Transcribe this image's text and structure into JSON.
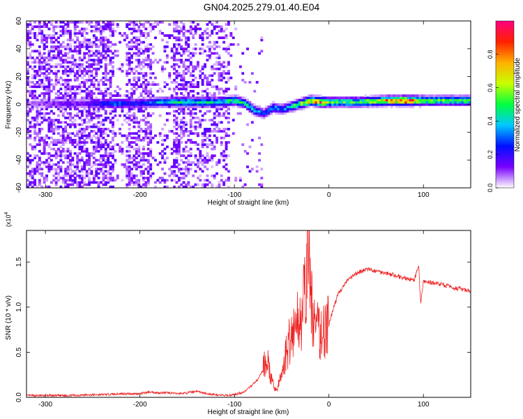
{
  "figure_title": "GN04.2025.279.01.40.E04",
  "chart_data": [
    {
      "type": "heatmap",
      "title": "GN04.2025.279.01.40.E04",
      "xlabel": "Height of straight line (km)",
      "ylabel": "Frequency (Hz)",
      "xlim": [
        -320,
        150
      ],
      "ylim": [
        -60,
        60
      ],
      "x_ticks": [
        -300,
        -200,
        -100,
        0,
        100
      ],
      "x_tick_labels": [
        "-300",
        "-200",
        "-100",
        "0",
        "100"
      ],
      "y_ticks": [
        -60,
        -40,
        -20,
        0,
        20,
        40,
        60
      ],
      "y_tick_labels": [
        "-60",
        "-40",
        "-20",
        "0",
        "20",
        "40",
        "60"
      ],
      "colorbar": {
        "label": "Normalized spectral amplitude",
        "range": [
          0,
          1
        ],
        "ticks": [
          0,
          0.2,
          0.4,
          0.6,
          0.8
        ],
        "tick_labels": [
          "0.0",
          "0.2",
          "0.4",
          "0.6",
          "0.8"
        ],
        "colors": [
          "#ffffff",
          "#7a00ff",
          "#0010ff",
          "#00c8ff",
          "#00ff40",
          "#c8ff00",
          "#ffb000",
          "#ff2000",
          "#ff0080"
        ]
      },
      "ridge": [
        {
          "x": -320,
          "freq": 0,
          "amp": 0.05
        },
        {
          "x": -300,
          "freq": 0,
          "amp": 0.1
        },
        {
          "x": -260,
          "freq": 0,
          "amp": 0.15
        },
        {
          "x": -230,
          "freq": 0,
          "amp": 0.3
        },
        {
          "x": -200,
          "freq": 0,
          "amp": 0.25
        },
        {
          "x": -180,
          "freq": 1,
          "amp": 0.4
        },
        {
          "x": -150,
          "freq": 1,
          "amp": 0.45
        },
        {
          "x": -120,
          "freq": 1,
          "amp": 0.4
        },
        {
          "x": -100,
          "freq": 2,
          "amp": 0.5
        },
        {
          "x": -90,
          "freq": 0,
          "amp": 0.45
        },
        {
          "x": -80,
          "freq": -5,
          "amp": 0.4
        },
        {
          "x": -70,
          "freq": -7,
          "amp": 0.3
        },
        {
          "x": -60,
          "freq": -3,
          "amp": 0.35
        },
        {
          "x": -50,
          "freq": -4,
          "amp": 0.3
        },
        {
          "x": -40,
          "freq": -2,
          "amp": 0.45
        },
        {
          "x": -30,
          "freq": 0,
          "amp": 0.6
        },
        {
          "x": -20,
          "freq": 2,
          "amp": 0.7
        },
        {
          "x": -10,
          "freq": 1,
          "amp": 0.85
        },
        {
          "x": 0,
          "freq": 1,
          "amp": 0.55
        },
        {
          "x": 30,
          "freq": 1,
          "amp": 0.5
        },
        {
          "x": 60,
          "freq": 2,
          "amp": 0.75
        },
        {
          "x": 80,
          "freq": 2,
          "amp": 0.9
        },
        {
          "x": 100,
          "freq": 2,
          "amp": 0.55
        },
        {
          "x": 150,
          "freq": 2,
          "amp": 0.5
        }
      ]
    },
    {
      "type": "line",
      "xlabel": "Height of straight line (km)",
      "ylabel": "SNR (10 * v/v)",
      "y_multiplier": "(x10",
      "y_multiplier_exp": "4",
      "xlim": [
        -320,
        150
      ],
      "ylim": [
        0,
        1.85
      ],
      "x_ticks": [
        -300,
        -200,
        -100,
        0,
        100
      ],
      "x_tick_labels": [
        "-300",
        "-200",
        "-100",
        "0",
        "100"
      ],
      "y_ticks": [
        0,
        0.5,
        1.0,
        1.5
      ],
      "y_tick_labels": [
        "0.0",
        "0.5",
        "1.0",
        "1.5"
      ],
      "color": "#ee2222",
      "series": [
        {
          "name": "SNR",
          "x": [
            -320,
            -300,
            -280,
            -260,
            -240,
            -220,
            -200,
            -190,
            -180,
            -170,
            -160,
            -150,
            -140,
            -130,
            -120,
            -110,
            -100,
            -90,
            -85,
            -80,
            -75,
            -70,
            -66,
            -63,
            -60,
            -55,
            -50,
            -45,
            -40,
            -35,
            -30,
            -25,
            -22,
            -20,
            -18,
            -15,
            -10,
            -5,
            0,
            5,
            10,
            20,
            30,
            40,
            50,
            60,
            70,
            80,
            90,
            95,
            97,
            100,
            110,
            120,
            130,
            140,
            150
          ],
          "y": [
            0.02,
            0.02,
            0.02,
            0.025,
            0.03,
            0.04,
            0.04,
            0.06,
            0.05,
            0.05,
            0.04,
            0.05,
            0.07,
            0.04,
            0.03,
            0.02,
            0.03,
            0.06,
            0.1,
            0.15,
            0.2,
            0.3,
            0.45,
            0.3,
            0.15,
            0.08,
            0.25,
            0.5,
            0.7,
            0.8,
            0.9,
            1.1,
            1.85,
            1.2,
            1.0,
            0.8,
            0.7,
            0.75,
            0.8,
            1.0,
            1.15,
            1.3,
            1.38,
            1.42,
            1.4,
            1.38,
            1.35,
            1.32,
            1.3,
            1.45,
            1.05,
            1.28,
            1.27,
            1.25,
            1.22,
            1.2,
            1.17
          ]
        }
      ]
    }
  ]
}
